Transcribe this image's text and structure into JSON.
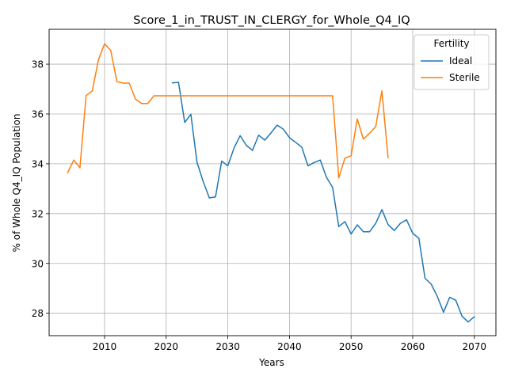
{
  "chart_data": {
    "type": "line",
    "title": "Score_1_in_TRUST_IN_CLERGY_for_Whole_Q4_IQ",
    "xlabel": "Years",
    "ylabel": "% of Whole Q4_IQ Population",
    "xlim": [
      2001,
      2073.5
    ],
    "ylim": [
      27.1,
      39.4
    ],
    "xticks": [
      2010,
      2020,
      2030,
      2040,
      2050,
      2060,
      2070
    ],
    "yticks": [
      28,
      30,
      32,
      34,
      36,
      38
    ],
    "grid": true,
    "legend": {
      "title": "Fertility",
      "position": "top-right"
    },
    "series": [
      {
        "name": "Ideal",
        "color": "#1f77b4",
        "x": [
          2021,
          2022,
          2023,
          2024,
          2025,
          2026,
          2027,
          2028,
          2029,
          2030,
          2031,
          2032,
          2033,
          2034,
          2035,
          2036,
          2037,
          2038,
          2039,
          2040,
          2041,
          2042,
          2043,
          2044,
          2045,
          2046,
          2047,
          2048,
          2049,
          2050,
          2051,
          2052,
          2053,
          2054,
          2055,
          2056,
          2057,
          2058,
          2059,
          2060,
          2061,
          2062,
          2063,
          2064,
          2065,
          2066,
          2067,
          2068,
          2069,
          2070
        ],
        "y": [
          37.25,
          37.27,
          35.66,
          35.99,
          34.06,
          33.29,
          32.63,
          32.67,
          34.11,
          33.92,
          34.63,
          35.13,
          34.74,
          34.54,
          35.15,
          34.95,
          35.24,
          35.55,
          35.39,
          35.05,
          34.86,
          34.67,
          33.92,
          34.05,
          34.15,
          33.46,
          33.05,
          31.48,
          31.68,
          31.18,
          31.55,
          31.27,
          31.27,
          31.61,
          32.16,
          31.56,
          31.32,
          31.61,
          31.75,
          31.21,
          31.01,
          29.4,
          29.17,
          28.67,
          28.04,
          28.64,
          28.52,
          27.88,
          27.65,
          27.86
        ]
      },
      {
        "name": "Sterile",
        "color": "#ff7f0e",
        "x": [
          2004,
          2005,
          2006,
          2007,
          2008,
          2009,
          2010,
          2011,
          2012,
          2013,
          2014,
          2015,
          2016,
          2017,
          2018,
          2019,
          2020,
          2021,
          2022,
          2023,
          2024,
          2025,
          2026,
          2027,
          2028,
          2029,
          2030,
          2031,
          2032,
          2033,
          2034,
          2035,
          2036,
          2037,
          2038,
          2039,
          2040,
          2041,
          2042,
          2043,
          2044,
          2045,
          2046,
          2047,
          2048,
          2049,
          2050,
          2051,
          2052,
          2053,
          2054,
          2055,
          2056
        ],
        "y": [
          33.64,
          34.15,
          33.84,
          36.74,
          36.92,
          38.17,
          38.82,
          38.55,
          37.3,
          37.24,
          37.24,
          36.6,
          36.42,
          36.42,
          36.73,
          36.73,
          36.73,
          36.73,
          36.73,
          36.73,
          36.73,
          36.73,
          36.73,
          36.73,
          36.73,
          36.73,
          36.73,
          36.73,
          36.73,
          36.73,
          36.73,
          36.73,
          36.73,
          36.73,
          36.73,
          36.73,
          36.73,
          36.73,
          36.73,
          36.73,
          36.73,
          36.73,
          36.73,
          36.73,
          33.43,
          34.23,
          34.32,
          35.8,
          34.99,
          35.23,
          35.5,
          36.93,
          34.25
        ]
      }
    ]
  }
}
